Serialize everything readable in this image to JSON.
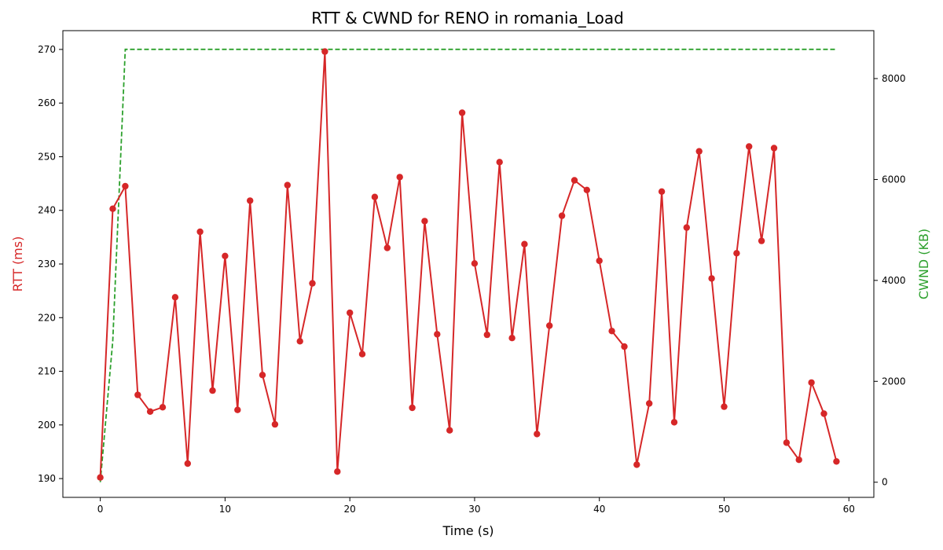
{
  "chart_data": {
    "type": "line",
    "title": "RTT & CWND for RENO in romania_Load",
    "xlabel": "Time (s)",
    "ylabel_left": "RTT (ms)",
    "ylabel_right": "CWND (KB)",
    "xlim": [
      -3,
      62
    ],
    "ylim_left": [
      186.5,
      273.5
    ],
    "ylim_right": [
      -300,
      8950
    ],
    "x_ticks": [
      0,
      10,
      20,
      30,
      40,
      50,
      60
    ],
    "y_left_ticks": [
      190,
      200,
      210,
      220,
      230,
      240,
      250,
      260,
      270
    ],
    "y_right_ticks": [
      0,
      2000,
      4000,
      6000,
      8000
    ],
    "grid": false,
    "legend": "none",
    "colors": {
      "rtt": "#d62728",
      "cwnd": "#2ca02c"
    },
    "series": [
      {
        "axis": "left",
        "style": "solid line with circle markers",
        "color": "#d62728",
        "x": [
          0,
          1,
          2,
          3,
          4,
          5,
          6,
          7,
          8,
          9,
          10,
          11,
          12,
          13,
          14,
          15,
          16,
          17,
          18,
          19,
          20,
          21,
          22,
          23,
          24,
          25,
          26,
          27,
          28,
          29,
          30,
          31,
          32,
          33,
          34,
          35,
          36,
          37,
          38,
          39,
          40,
          41,
          42,
          43,
          44,
          45,
          46,
          47,
          48,
          49,
          50,
          51,
          52,
          53,
          54,
          55,
          56,
          57,
          58,
          59
        ],
        "values": [
          190.2,
          240.3,
          244.5,
          205.6,
          202.5,
          203.3,
          223.8,
          192.8,
          236.0,
          206.4,
          231.5,
          202.8,
          241.8,
          209.3,
          200.1,
          244.7,
          215.6,
          226.4,
          269.6,
          191.3,
          220.9,
          213.2,
          242.5,
          233.0,
          246.2,
          203.2,
          238.0,
          216.9,
          199.0,
          258.2,
          230.1,
          216.8,
          249.0,
          216.2,
          233.7,
          198.3,
          218.5,
          239.0,
          245.6,
          243.8,
          230.6,
          217.5,
          214.6,
          192.6,
          204.0,
          243.5,
          200.5,
          236.8,
          251.0,
          227.3,
          203.4,
          232.0,
          251.9,
          234.3,
          251.6,
          196.7,
          193.5,
          207.9,
          202.1,
          193.2
        ]
      },
      {
        "axis": "right",
        "style": "dashed line",
        "color": "#2ca02c",
        "x": [
          0,
          1,
          2,
          59
        ],
        "values": [
          0,
          2800,
          8580,
          8580
        ]
      }
    ]
  }
}
